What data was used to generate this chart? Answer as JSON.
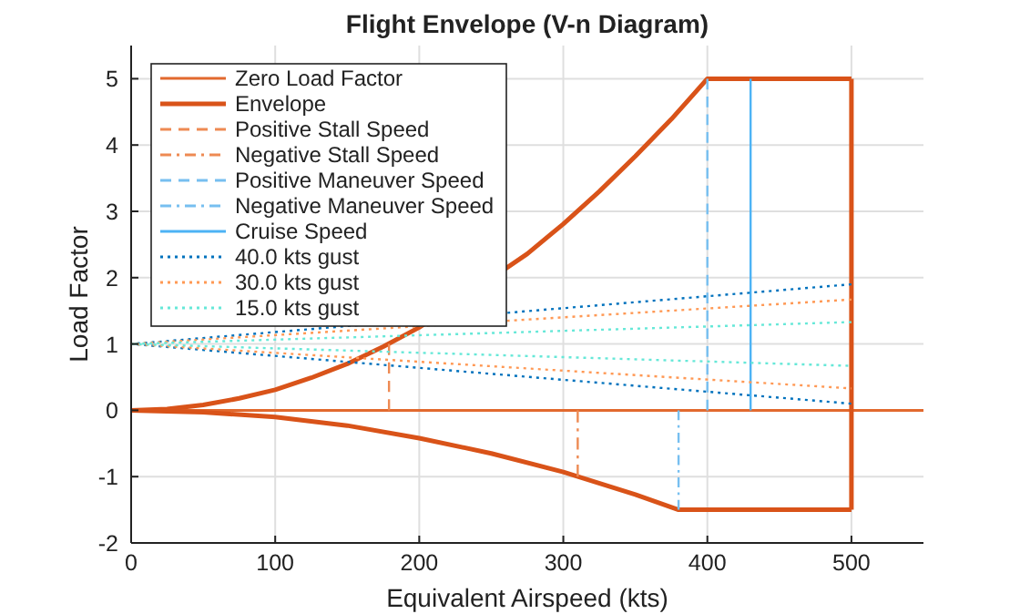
{
  "chart_data": {
    "type": "line",
    "title": "Flight Envelope (V-n Diagram)",
    "xlabel": "Equivalent Airspeed (kts)",
    "ylabel": "Load Factor",
    "xlim": [
      0,
      550
    ],
    "ylim": [
      -2,
      5.5
    ],
    "xticks": [
      0,
      100,
      200,
      300,
      400,
      500
    ],
    "yticks": [
      -2,
      -1,
      0,
      1,
      2,
      3,
      4,
      5
    ],
    "grid": true,
    "legend": "top left",
    "line_style": "solid",
    "series": [
      {
        "name": "Zero Load Factor",
        "color": "#e2692e",
        "x": [
          0,
          550
        ],
        "values": [
          0,
          0
        ]
      },
      {
        "name": "Envelope",
        "color": "#d95319",
        "x": [
          0,
          25,
          50,
          75,
          100,
          125,
          150,
          175,
          200,
          225,
          250,
          275,
          300,
          325,
          350,
          375,
          400,
          500
        ],
        "values": [
          0,
          0.02,
          0.08,
          0.18,
          0.31,
          0.49,
          0.7,
          0.96,
          1.25,
          null,
          null,
          2.36,
          2.81,
          3.3,
          3.83,
          4.39,
          5,
          5
        ]
      },
      {
        "color": "#d95319",
        "x": [
          0,
          50,
          100,
          150,
          200,
          250,
          300,
          350,
          380,
          500
        ],
        "values": [
          0,
          -0.03,
          -0.1,
          -0.23,
          -0.42,
          -0.65,
          -0.93,
          -1.27,
          -1.5,
          -1.5
        ]
      },
      {
        "color": "#d95319",
        "x": [
          500,
          500
        ],
        "values": [
          -1.5,
          5
        ]
      },
      {
        "name": "Positive Stall Speed",
        "color": "#ee8a53",
        "line_style": "dashed",
        "x": [
          179,
          179
        ],
        "values": [
          0,
          1
        ]
      },
      {
        "name": "Negative Stall Speed",
        "color": "#ee8a53",
        "line_style": "dashdot",
        "x": [
          310,
          310
        ],
        "values": [
          0,
          -1
        ]
      },
      {
        "name": "Positive Maneuver Speed",
        "color": "#77bff0",
        "line_style": "dashed",
        "x": [
          400,
          400
        ],
        "values": [
          0,
          5
        ]
      },
      {
        "name": "Negative Maneuver Speed",
        "color": "#77bff0",
        "line_style": "dashdot",
        "x": [
          380,
          380
        ],
        "values": [
          0,
          -1.5
        ]
      },
      {
        "name": "Cruise Speed",
        "color": "#4db3f5",
        "x": [
          430,
          430
        ],
        "values": [
          0,
          5
        ]
      },
      {
        "name": "40.0 kts gust",
        "color": "#0072bd",
        "line_style": "dotted",
        "x": [
          500,
          0,
          500
        ],
        "values": [
          1.9,
          1,
          0.1
        ]
      },
      {
        "name": "30.0 kts gust",
        "color": "#ff9955",
        "line_style": "dotted",
        "x": [
          500,
          0,
          500
        ],
        "values": [
          1.67,
          1,
          0.33
        ]
      },
      {
        "name": "15.0 kts gust",
        "color": "#66e8d8",
        "line_style": "dotted",
        "x": [
          500,
          0,
          500
        ],
        "values": [
          1.33,
          1,
          0.67
        ]
      }
    ]
  }
}
